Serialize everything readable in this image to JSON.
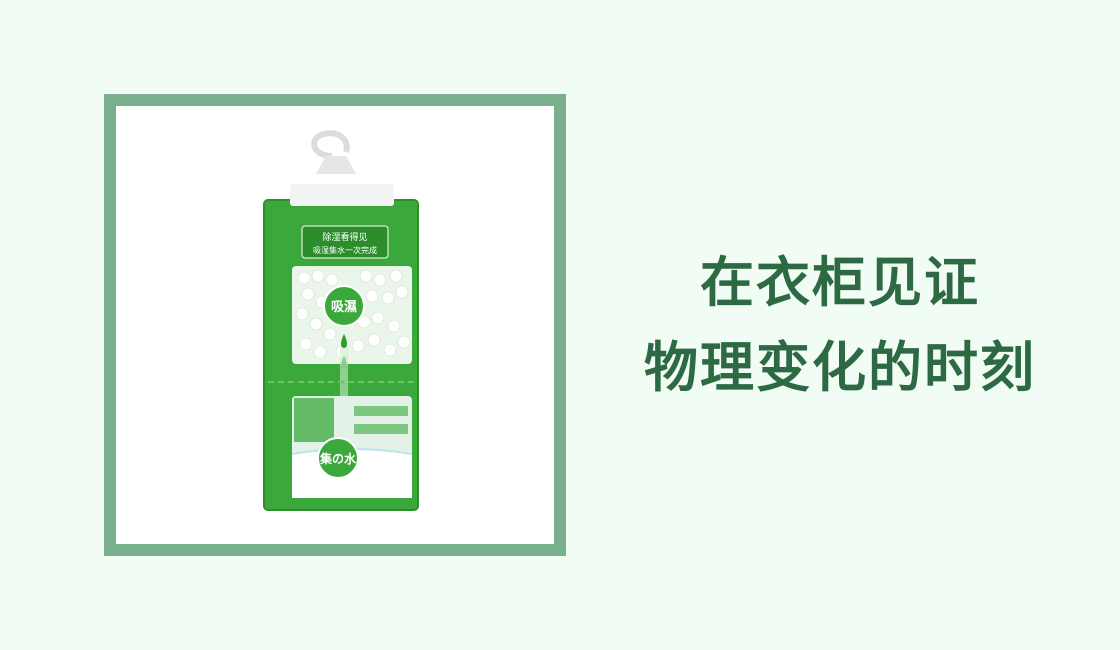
{
  "heading": {
    "line1": "在衣柜见证",
    "line2": "物理变化的时刻"
  },
  "product": {
    "top_text_line1": "除湿看得见",
    "top_text_line2": "吸湿集水一次完成",
    "absorb_label": "吸濕",
    "collect_label": "集の水",
    "bag_color": "#3aa83a",
    "frame_color": "#7aaf8e",
    "title_color": "#2d6a43"
  }
}
